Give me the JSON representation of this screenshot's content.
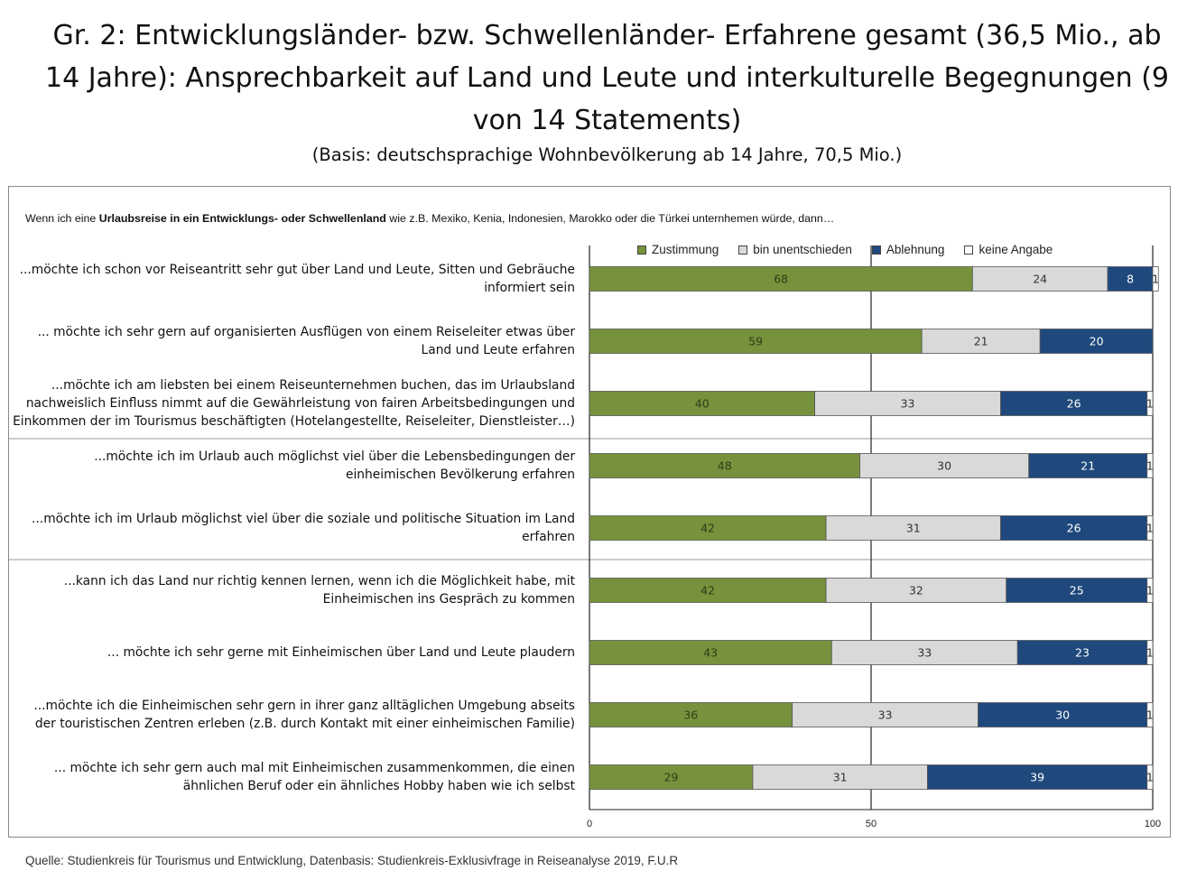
{
  "header": {
    "title": "Gr. 2: Entwicklungsländer- bzw. Schwellenländer- Erfahrene gesamt (36,5 Mio., ab 14 Jahre): Ansprechbarkeit auf Land und Leute und interkulturelle Begegnungen (9 von 14 Statements)",
    "subtitle": "(Basis: deutschsprachige Wohnbevölkerung ab 14 Jahre, 70,5 Mio.)"
  },
  "intro": {
    "prefix": "Wenn ich eine ",
    "bold": "Urlaubsreise in ein Entwicklungs- oder Schwellenland",
    "suffix": " wie z.B. Mexiko, Kenia, Indonesien, Marokko oder die Türkei unternhemen würde, dann…"
  },
  "source": "Quelle: Studienkreis für Tourismus und Entwicklung, Datenbasis: Studienkreis-Exklusivfrage in Reiseanalyse 2019, F.U.R",
  "colors": {
    "Zustimmung": "#76923c",
    "bin unentschieden": "#d9d9d9",
    "Ablehnung": "#1f497d",
    "keine Angabe": "#ffffff"
  },
  "chart_data": {
    "type": "bar",
    "orientation": "horizontal",
    "stacked": true,
    "xlim": [
      0,
      100
    ],
    "xticks": [
      0,
      50,
      100
    ],
    "legend_position": "top",
    "categories": [
      "...möchte ich schon vor Reiseantritt sehr gut über Land und Leute, Sitten und Gebräuche informiert sein",
      "... möchte ich sehr gern auf organisierten Ausflügen von einem Reiseleiter etwas über Land und Leute erfahren",
      "...möchte ich am liebsten bei einem Reiseunternehmen buchen, das im Urlaubsland nachweislich Einfluss nimmt auf die Gewährleistung von fairen Arbeitsbedingungen und Einkommen der im Tourismus beschäftigten (Hotelangestellte, Reiseleiter, Dienstleister…)",
      "...möchte ich im Urlaub auch möglichst viel über die Lebensbedingungen der einheimischen Bevölkerung erfahren",
      "...möchte ich im Urlaub möglichst viel über die soziale und politische Situation im Land erfahren",
      "...kann ich das Land nur richtig kennen lernen, wenn ich die Möglichkeit habe, mit Einheimischen ins Gespräch zu kommen",
      "... möchte ich sehr gerne mit Einheimischen über Land und Leute plaudern",
      "...möchte ich die Einheimischen sehr gern in ihrer ganz alltäglichen Umgebung abseits der touristischen Zentren erleben (z.B. durch Kontakt mit einer einheimischen Familie)",
      "... möchte ich sehr gern auch mal mit Einheimischen zusammenkommen, die einen ähnlichen Beruf oder ein ähnliches Hobby haben wie ich selbst"
    ],
    "series": [
      {
        "name": "Zustimmung",
        "values": [
          68,
          59,
          40,
          48,
          42,
          42,
          43,
          36,
          29
        ]
      },
      {
        "name": "bin unentschieden",
        "values": [
          24,
          21,
          33,
          30,
          31,
          32,
          33,
          33,
          31
        ]
      },
      {
        "name": "Ablehnung",
        "values": [
          8,
          20,
          26,
          21,
          26,
          25,
          23,
          30,
          39
        ]
      },
      {
        "name": "keine Angabe",
        "values": [
          1,
          0,
          1,
          1,
          1,
          1,
          1,
          1,
          1
        ]
      }
    ]
  }
}
